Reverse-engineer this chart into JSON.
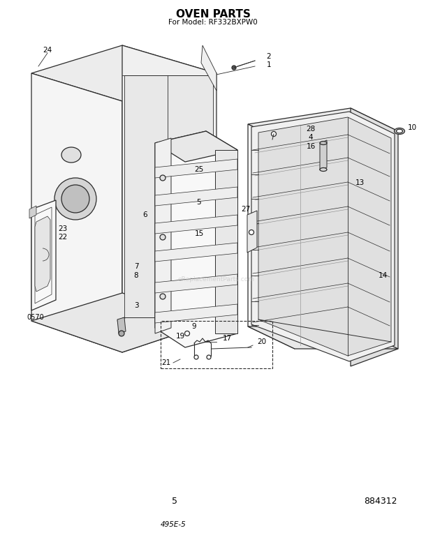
{
  "title": "OVEN PARTS",
  "subtitle": "For Model: RF332BXPW0",
  "page_num": "5",
  "part_num": "884312",
  "bottom_text": "495E-5",
  "bg_color": "#ffffff",
  "line_color": "#2a2a2a",
  "title_fontsize": 11,
  "subtitle_fontsize": 7.5,
  "label_fontsize": 7.5,
  "watermark": "eReplacementParts.com",
  "code": "0570"
}
